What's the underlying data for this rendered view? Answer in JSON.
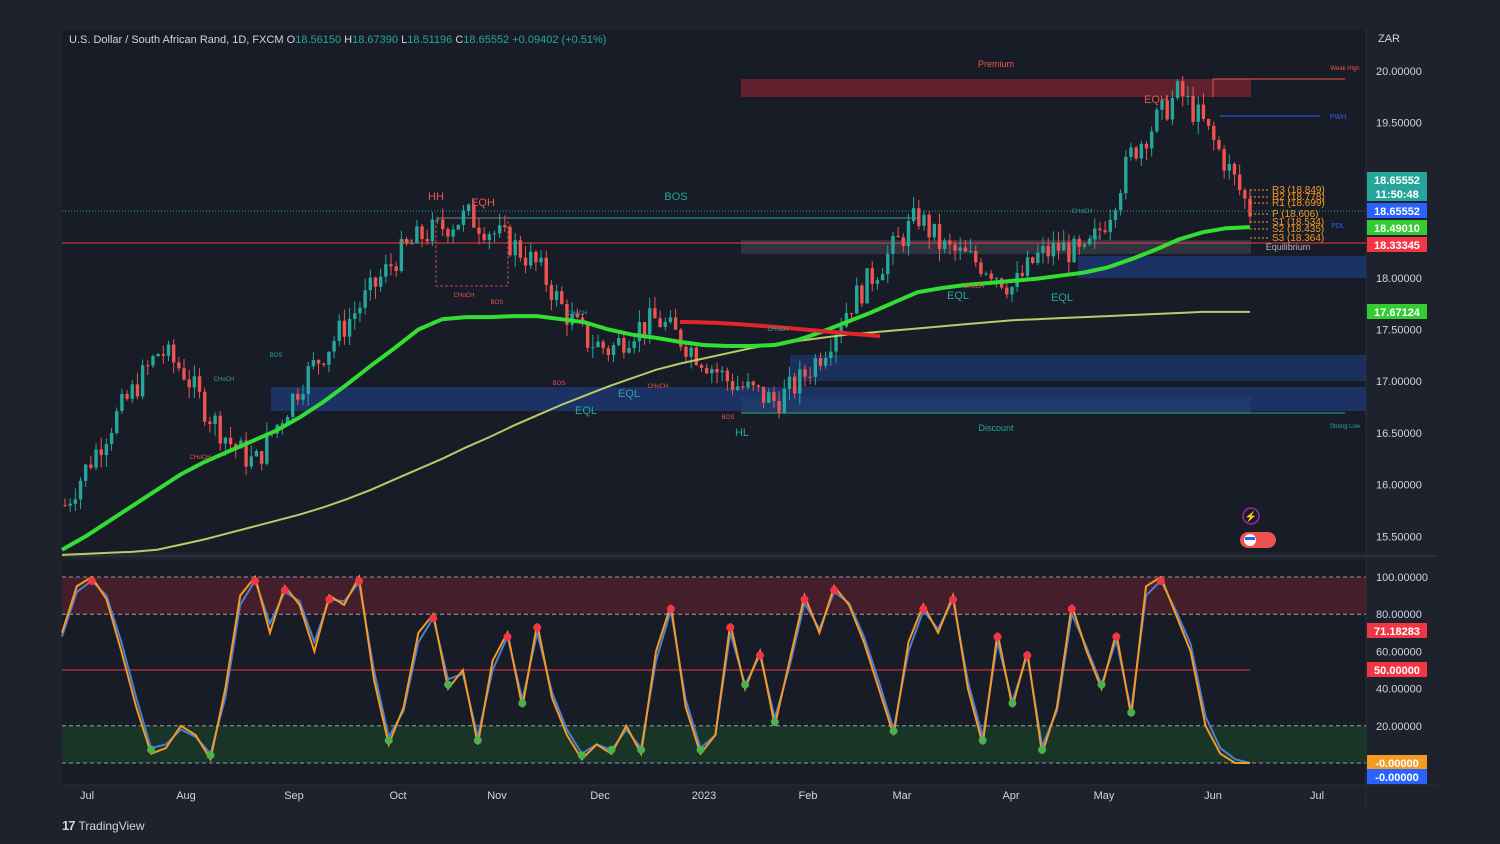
{
  "header": {
    "symbol": "U.S. Dollar / South African Rand, 1D, FXCM",
    "o_label": "O",
    "o_value": "18.56150",
    "h_label": "H",
    "h_value": "18.67390",
    "l_label": "L",
    "l_value": "18.51196",
    "c_label": "C",
    "c_value": "18.65552",
    "change": "+0.09402 (+0.51%)"
  },
  "currency": "ZAR",
  "brand": "TradingView",
  "colors": {
    "background": "#1e222d",
    "up": "#26a69a",
    "down": "#ef5350",
    "ema_fast": "#33dd33",
    "ema_slow": "#b8cc66",
    "stoch_k": "#f59a23",
    "stoch_d": "#4a7fd4",
    "premium_zone": "#7a2230",
    "discount_zone": "#1d3a7a"
  },
  "annotations": {
    "premium": "Premium",
    "discount": "Discount",
    "equilibrium": "Equilibrium",
    "weak_high": "Weak High",
    "strong_low": "Strong Low",
    "pwh": "PWH",
    "pdl": "PDL",
    "bos": "BOS",
    "choch": "CHoCH",
    "hh": "HH",
    "hl": "HL",
    "eqh": "EQH",
    "eql": "EQL"
  },
  "pivots": {
    "r3": "R3 (18.849)",
    "r2": "R2 (18.778)",
    "r1": "R1 (18.699)",
    "p": "P (18.606)",
    "s1": "S1 (18.534)",
    "s2": "S2 (18.435)",
    "s3": "S3 (18.364)"
  },
  "price_badges": [
    {
      "text": "18.65552",
      "bg": "#26a69a"
    },
    {
      "text": "11:50:48",
      "bg": "#26a69a"
    },
    {
      "text": "18.65552",
      "bg": "#2962ff"
    },
    {
      "text": "18.49010",
      "bg": "#33cc33"
    },
    {
      "text": "18.33345",
      "bg": "#f23645"
    },
    {
      "text": "17.67124",
      "bg": "#33cc33"
    }
  ],
  "osc_badges": [
    {
      "text": "71.18283",
      "bg": "#f23645"
    },
    {
      "text": "50.00000",
      "bg": "#f23645"
    },
    {
      "text": "-0.00000",
      "bg": "#f59a23"
    },
    {
      "text": "-0.00000",
      "bg": "#2962ff"
    }
  ],
  "chart_data": [
    {
      "type": "candlestick",
      "title": "U.S. Dollar / South African Rand, 1D, FXCM",
      "ylim": [
        15.3,
        20.3
      ],
      "yticks": [
        "20.00000",
        "19.50000",
        "19.00000",
        "18.50000",
        "18.00000",
        "17.50000",
        "17.00000",
        "16.50000",
        "16.00000",
        "15.50000"
      ],
      "xticks": [
        "Jul",
        "Aug",
        "Sep",
        "Oct",
        "Nov",
        "Dec",
        "2023",
        "Feb",
        "Mar",
        "Apr",
        "May",
        "Jun",
        "Jul"
      ],
      "series": [
        {
          "name": "Close",
          "values": [
            15.8,
            16.2,
            16.6,
            16.95,
            17.3,
            17.1,
            16.7,
            16.4,
            16.2,
            16.6,
            17.0,
            17.3,
            17.6,
            17.9,
            18.2,
            18.4,
            18.5,
            18.6,
            18.45,
            18.3,
            18.1,
            17.7,
            17.4,
            17.3,
            17.5,
            17.6,
            17.4,
            17.2,
            17.0,
            16.9,
            16.8,
            17.0,
            17.3,
            17.7,
            18.0,
            18.3,
            18.6,
            18.3,
            18.2,
            18.1,
            17.9,
            18.2,
            18.3,
            18.2,
            18.6,
            19.2,
            19.5,
            19.8,
            19.5,
            19.1,
            18.65
          ]
        },
        {
          "name": "EMA fast",
          "values": [
            15.37,
            15.5,
            15.65,
            15.8,
            15.95,
            16.1,
            16.22,
            16.32,
            16.42,
            16.52,
            16.65,
            16.8,
            16.97,
            17.15,
            17.32,
            17.5,
            17.6,
            17.62,
            17.62,
            17.63,
            17.63,
            17.6,
            17.57,
            17.5,
            17.45,
            17.42,
            17.38,
            17.35,
            17.34,
            17.34,
            17.35,
            17.4,
            17.48,
            17.57,
            17.66,
            17.76,
            17.86,
            17.9,
            17.93,
            17.95,
            17.97,
            17.99,
            18.02,
            18.05,
            18.1,
            18.18,
            18.27,
            18.37,
            18.44,
            18.48,
            18.49
          ]
        },
        {
          "name": "EMA slow",
          "values": [
            15.32,
            15.33,
            15.34,
            15.35,
            15.37,
            15.42,
            15.47,
            15.53,
            15.59,
            15.65,
            15.71,
            15.78,
            15.86,
            15.95,
            16.05,
            16.15,
            16.25,
            16.36,
            16.46,
            16.57,
            16.67,
            16.77,
            16.86,
            16.95,
            17.03,
            17.11,
            17.17,
            17.22,
            17.27,
            17.32,
            17.36,
            17.39,
            17.42,
            17.45,
            17.47,
            17.49,
            17.51,
            17.53,
            17.55,
            17.57,
            17.59,
            17.6,
            17.61,
            17.62,
            17.63,
            17.64,
            17.65,
            17.66,
            17.67,
            17.67,
            17.67
          ]
        }
      ]
    },
    {
      "type": "line",
      "title": "Stochastic",
      "ylim": [
        0,
        100
      ],
      "yticks": [
        "100.00000",
        "80.00000",
        "60.00000",
        "40.00000",
        "20.00000"
      ],
      "series": [
        {
          "name": "%K",
          "values": [
            70,
            95,
            100,
            88,
            60,
            30,
            5,
            8,
            20,
            15,
            2,
            40,
            90,
            100,
            70,
            95,
            85,
            60,
            90,
            85,
            100,
            45,
            10,
            30,
            70,
            80,
            40,
            50,
            10,
            55,
            70,
            30,
            75,
            35,
            15,
            2,
            10,
            5,
            20,
            5,
            60,
            85,
            30,
            5,
            15,
            75,
            40,
            60,
            20,
            55,
            90,
            70,
            95,
            85,
            65,
            40,
            15,
            65,
            85,
            70,
            90,
            40,
            10,
            70,
            30,
            60,
            5,
            30,
            85,
            60,
            40,
            70,
            25,
            95,
            100,
            80,
            60,
            20,
            5,
            0,
            0
          ]
        },
        {
          "name": "%D",
          "values": [
            68,
            92,
            98,
            90,
            65,
            35,
            8,
            10,
            18,
            14,
            5,
            35,
            85,
            98,
            75,
            92,
            87,
            65,
            88,
            87,
            97,
            50,
            14,
            28,
            65,
            78,
            45,
            48,
            14,
            50,
            68,
            34,
            70,
            38,
            18,
            5,
            10,
            7,
            18,
            8,
            55,
            82,
            34,
            8,
            15,
            70,
            42,
            58,
            24,
            52,
            86,
            72,
            92,
            86,
            68,
            44,
            18,
            60,
            82,
            72,
            88,
            44,
            14,
            65,
            33,
            58,
            9,
            28,
            80,
            62,
            42,
            66,
            28,
            90,
            98,
            82,
            64,
            25,
            8,
            2,
            0
          ]
        }
      ]
    }
  ]
}
